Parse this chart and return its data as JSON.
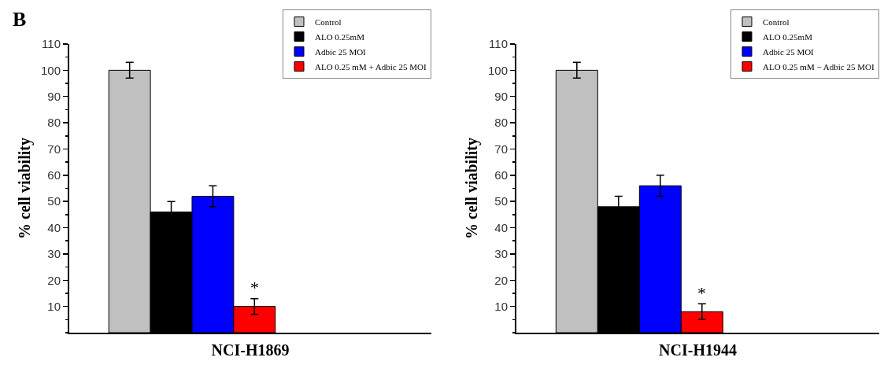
{
  "chart_data": [
    {
      "type": "bar",
      "categories": [
        null
      ],
      "xlabel": "NCI-H1869",
      "ylabel": "% cell viability",
      "ylim": [
        0,
        110
      ],
      "yticks": [
        10,
        20,
        30,
        40,
        50,
        60,
        70,
        80,
        90,
        100,
        110
      ],
      "grid": false,
      "legend": "top right",
      "series": [
        {
          "name": "Control",
          "color": "#c0c0c0",
          "values": [
            100
          ],
          "errors": [
            3
          ]
        },
        {
          "name": "ALO 0.25mM",
          "color": "#000000",
          "values": [
            46
          ],
          "errors": [
            4
          ]
        },
        {
          "name": "Adbic 25 MOI",
          "color": "#0000ff",
          "values": [
            52
          ],
          "errors": [
            4
          ]
        },
        {
          "name": "ALO 0.25 mM + Adbic 25 MOI",
          "color": "#ff0000",
          "values": [
            10
          ],
          "errors": [
            3
          ]
        }
      ],
      "annotations": [
        "B",
        "*"
      ]
    },
    {
      "type": "bar",
      "categories": [
        null
      ],
      "xlabel": "NCI-H1944",
      "ylabel": "% cell viability",
      "ylim": [
        0,
        110
      ],
      "yticks": [
        10,
        20,
        30,
        40,
        50,
        60,
        70,
        80,
        90,
        100,
        110
      ],
      "grid": false,
      "legend": "top right",
      "series": [
        {
          "name": "Control",
          "color": "#c0c0c0",
          "values": [
            100
          ],
          "errors": [
            3
          ]
        },
        {
          "name": "ALO 0.25mM",
          "color": "#000000",
          "values": [
            48
          ],
          "errors": [
            4
          ]
        },
        {
          "name": "Adbic 25 MOI",
          "color": "#0000ff",
          "values": [
            56
          ],
          "errors": [
            4
          ]
        },
        {
          "name": "ALO 0.25 mM − Adbic 25 MOI",
          "color": "#ff0000",
          "values": [
            8
          ],
          "errors": [
            3
          ]
        }
      ],
      "annotations": [
        "*"
      ]
    }
  ]
}
